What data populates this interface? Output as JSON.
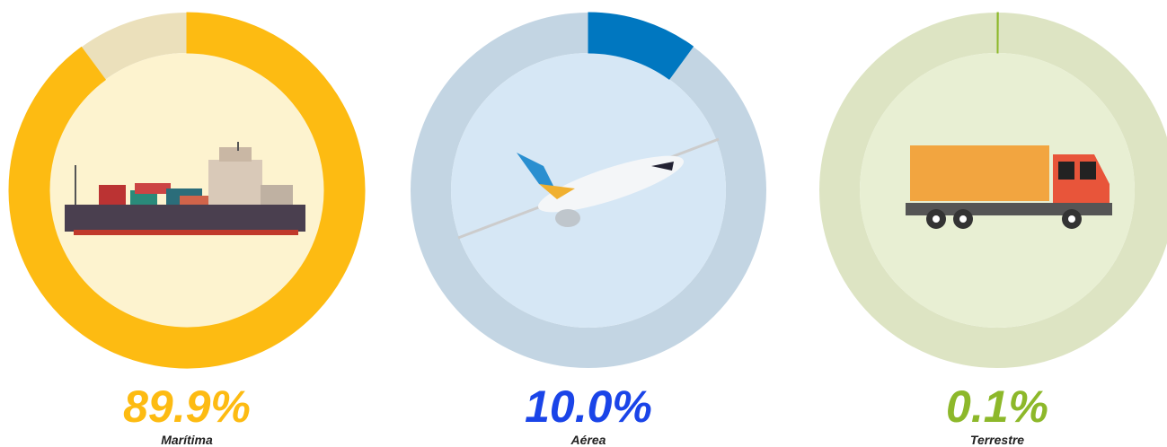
{
  "chart_data": [
    {
      "type": "donut",
      "categories": [
        "Marítima"
      ],
      "values": [
        89.9
      ],
      "value_labels": [
        "89.9%"
      ],
      "color": "#fdbb12",
      "track_color": "#ebe0bb",
      "inner_color": "#fdf3cf"
    },
    {
      "type": "donut",
      "categories": [
        "Aérea"
      ],
      "values": [
        10.0
      ],
      "value_labels": [
        "10.0%"
      ],
      "color": "#0077c0",
      "track_color": "#c3d5e3",
      "inner_color": "#d6e7f5",
      "label_color": "#1a44e8"
    },
    {
      "type": "donut",
      "categories": [
        "Terrestre"
      ],
      "values": [
        0.1
      ],
      "value_labels": [
        "0.1%"
      ],
      "color": "#8db82a",
      "track_color": "#dde4c3",
      "inner_color": "#e8efd3"
    }
  ]
}
